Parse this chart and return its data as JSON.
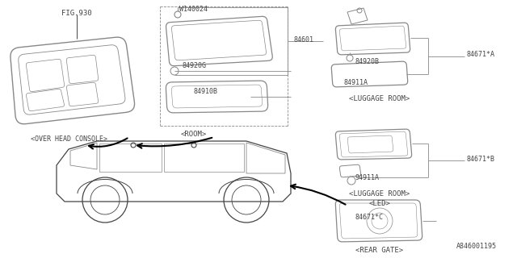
{
  "bg_color": "#ffffff",
  "line_color": "#888888",
  "dark_color": "#444444",
  "text_color": "#555555",
  "footer": "A846001195",
  "fig_label": "FIG.930",
  "ohc_label": "<OVER HEAD CONSOLE>",
  "room_label": "<ROOM>",
  "luggage_label": "<LUGGAGE ROOM>",
  "luggage_led_label1": "<LUGGAGE ROOM>",
  "luggage_led_label2": "<LED>",
  "rear_gate_label": "<REAR GATE>",
  "pn_W140024": "W140024",
  "pn_84601": "84601",
  "pn_84920G": "84920G",
  "pn_84910B": "84910B",
  "pn_84920B": "84920B",
  "pn_84911A_top": "84911A",
  "pn_84671A": "84671*A",
  "pn_84911A_mid": "94911A",
  "pn_84671B": "84671*B",
  "pn_84671C": "84671*C"
}
